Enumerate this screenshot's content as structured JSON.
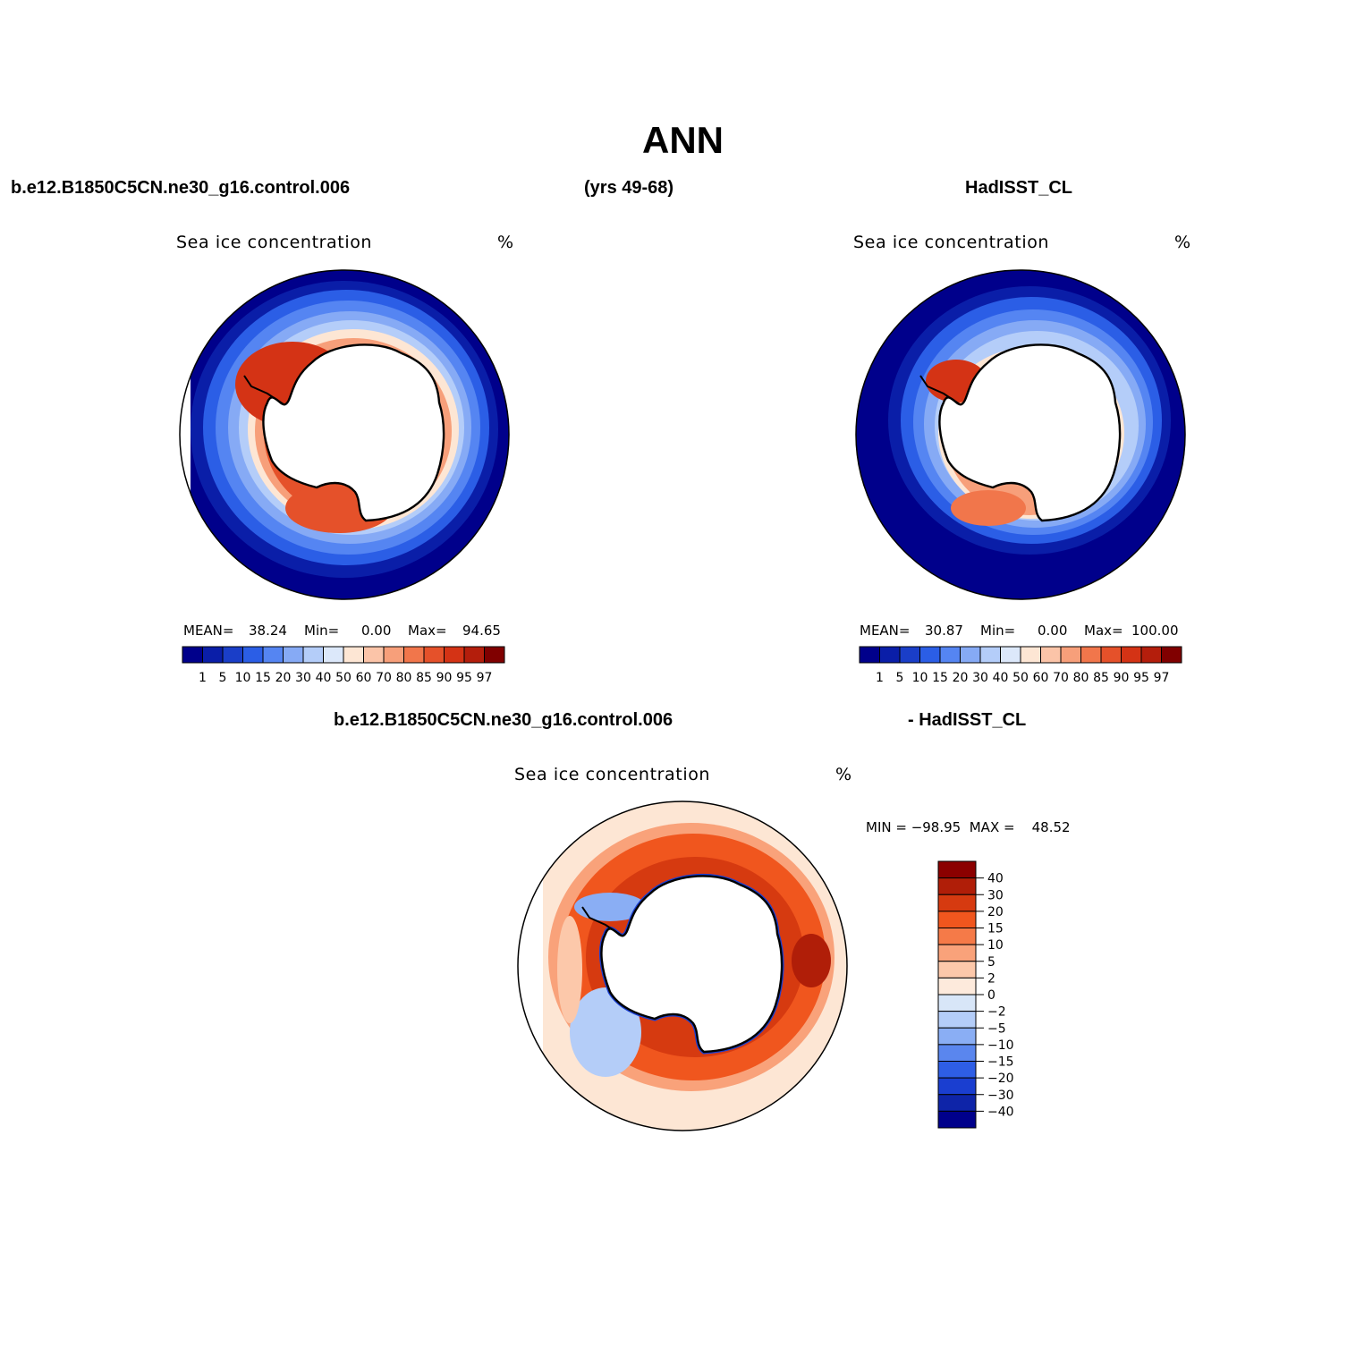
{
  "title": "ANN",
  "header": {
    "case_name": "b.e12.B1850C5CN.ne30_g16.control.006",
    "years": "(yrs 49-68)",
    "obs_name": "HadISST_CL"
  },
  "diff_header": {
    "case_name": "b.e12.B1850C5CN.ne30_g16.control.006",
    "obs_part": "- HadISST_CL"
  },
  "panels": {
    "model": {
      "variable": "Sea ice concentration",
      "units": "%",
      "mean_label": "MEAN=",
      "mean": "38.24",
      "min_label": "Min=",
      "min": "0.00",
      "max_label": "Max=",
      "max": "94.65"
    },
    "obs": {
      "variable": "Sea ice concentration",
      "units": "%",
      "mean_label": "MEAN=",
      "mean": "30.87",
      "min_label": "Min=",
      "min": "0.00",
      "max_label": "Max=",
      "max": "100.00"
    },
    "diff": {
      "variable": "Sea ice concentration",
      "units": "%",
      "minmax_text": "MIN = −98.95  MAX =    48.52"
    }
  },
  "colorbars": {
    "concentration": {
      "levels": [
        "1",
        "5",
        "10",
        "15",
        "20",
        "30",
        "40",
        "50",
        "60",
        "70",
        "80",
        "85",
        "90",
        "95",
        "97"
      ],
      "colors": [
        "#00008b",
        "#0a1ea8",
        "#1a3ec8",
        "#2b5ee6",
        "#5585f2",
        "#86aaf5",
        "#b4cdf9",
        "#dce8fa",
        "#fde6d4",
        "#fbc4a8",
        "#f79f7a",
        "#f1764b",
        "#e5512a",
        "#d43315",
        "#b41e0c",
        "#800000"
      ]
    },
    "difference": {
      "levels": [
        "40",
        "30",
        "20",
        "15",
        "10",
        "5",
        "2",
        "0",
        "−2",
        "−5",
        "−10",
        "−15",
        "−20",
        "−30",
        "−40"
      ],
      "colors": [
        "#8b0000",
        "#b01e08",
        "#d63a10",
        "#f0561e",
        "#f57a48",
        "#f9a27a",
        "#fcc8aa",
        "#fdeadc",
        "#d8e6f8",
        "#b4cdf8",
        "#8aaef4",
        "#5a86ee",
        "#2e5ee6",
        "#1a3ed0",
        "#0e24a8",
        "#00008b"
      ]
    }
  }
}
